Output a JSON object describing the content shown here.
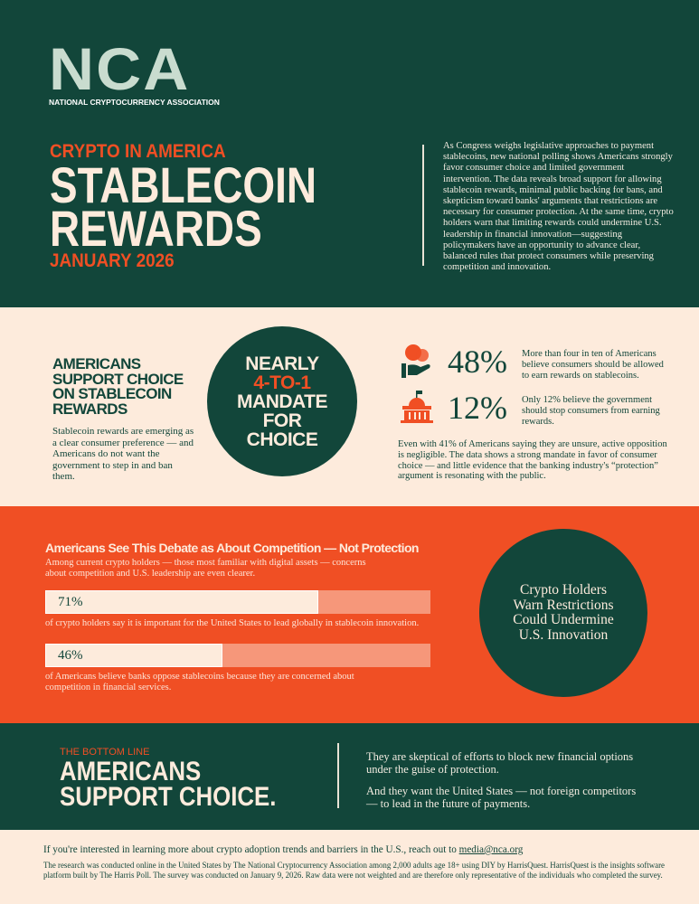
{
  "logo": {
    "text": "NCA",
    "org": "NATIONAL CRYPTOCURRENCY ASSOCIATION"
  },
  "header": {
    "kicker": "CRYPTO IN AMERICA",
    "title1": "STABLECOIN",
    "title2": "REWARDS",
    "date": "JANUARY 2026",
    "intro": "As Congress weighs legislative approaches to payment stablecoins, new national polling shows Americans strongly favor consumer choice and limited government intervention. The data reveals broad support for allowing stablecoin rewards, minimal public backing for bans, and skepticism toward banks' arguments that restrictions are necessary for consumer protection. At the same time, crypto holders warn that limiting rewards could undermine U.S. leadership in financial innovation—suggesting policymakers have an opportunity to advance clear, balanced rules that protect consumers while preserving competition and innovation."
  },
  "choice": {
    "heading": "AMERICANS SUPPORT CHOICE ON STABLECOIN REWARDS",
    "body": "Stablecoin rewards are emerging as a clear consumer preference — and Americans do not want the government to step in and ban them.",
    "circle": {
      "line1": "NEARLY",
      "line2": "4-TO-1",
      "line3": "MANDATE",
      "line4": "FOR",
      "line5": "CHOICE"
    },
    "stats": [
      {
        "icon": "hand-coin-icon",
        "value": "48%",
        "text": "More than four in ten of Americans believe consumers should be allowed to earn rewards on stablecoins."
      },
      {
        "icon": "government-building-icon",
        "value": "12%",
        "text": "Only 12% believe the government should stop consumers from earning rewards."
      }
    ],
    "note": "Even with 41% of Americans saying they are unsure, active opposition is negligible. The data shows a strong mandate in favor of consumer choice — and little evidence that the banking industry's “protection” argument is resonating with the public."
  },
  "competition": {
    "heading": "Americans See This Debate as About Competition — Not Protection",
    "sub": "Among current crypto holders — those most familiar with digital assets — concerns about competition and U.S. leadership are even clearer.",
    "bars": [
      {
        "label": "71%",
        "value": 71,
        "caption": "of crypto holders say it is important for the United States to lead globally in stablecoin innovation."
      },
      {
        "label": "46%",
        "value": 46,
        "caption": "of Americans believe banks oppose stablecoins because they are concerned about competition in financial services."
      }
    ],
    "circle": "Crypto Holders Warn Restrictions Could Undermine U.S. Innovation"
  },
  "bottom": {
    "kicker": "THE BOTTOM LINE",
    "title1": "AMERICANS",
    "title2": "SUPPORT CHOICE.",
    "p1": "They are skeptical of efforts to block new financial options under the guise of protection.",
    "p2": "And they want the United States — not foreign competitors — to lead in the future of payments."
  },
  "footer": {
    "contact": "If you're interested in learning more about crypto adoption trends and barriers in the U.S., reach out to ",
    "email": "media@nca.org",
    "method": "The research was conducted online in the United States by The National Cryptocurrency Association among 2,000 adults age 18+ using DIY by HarrisQuest. HarrisQuest is the insights software platform built by The Harris Poll. The survey was conducted on January 9, 2026.  Raw data were not weighted and are therefore only representative of the individuals who completed the survey."
  },
  "colors": {
    "green": "#12463a",
    "orange": "#f04f24",
    "cream": "#fdebdc",
    "bar_empty": "#f6977a"
  }
}
